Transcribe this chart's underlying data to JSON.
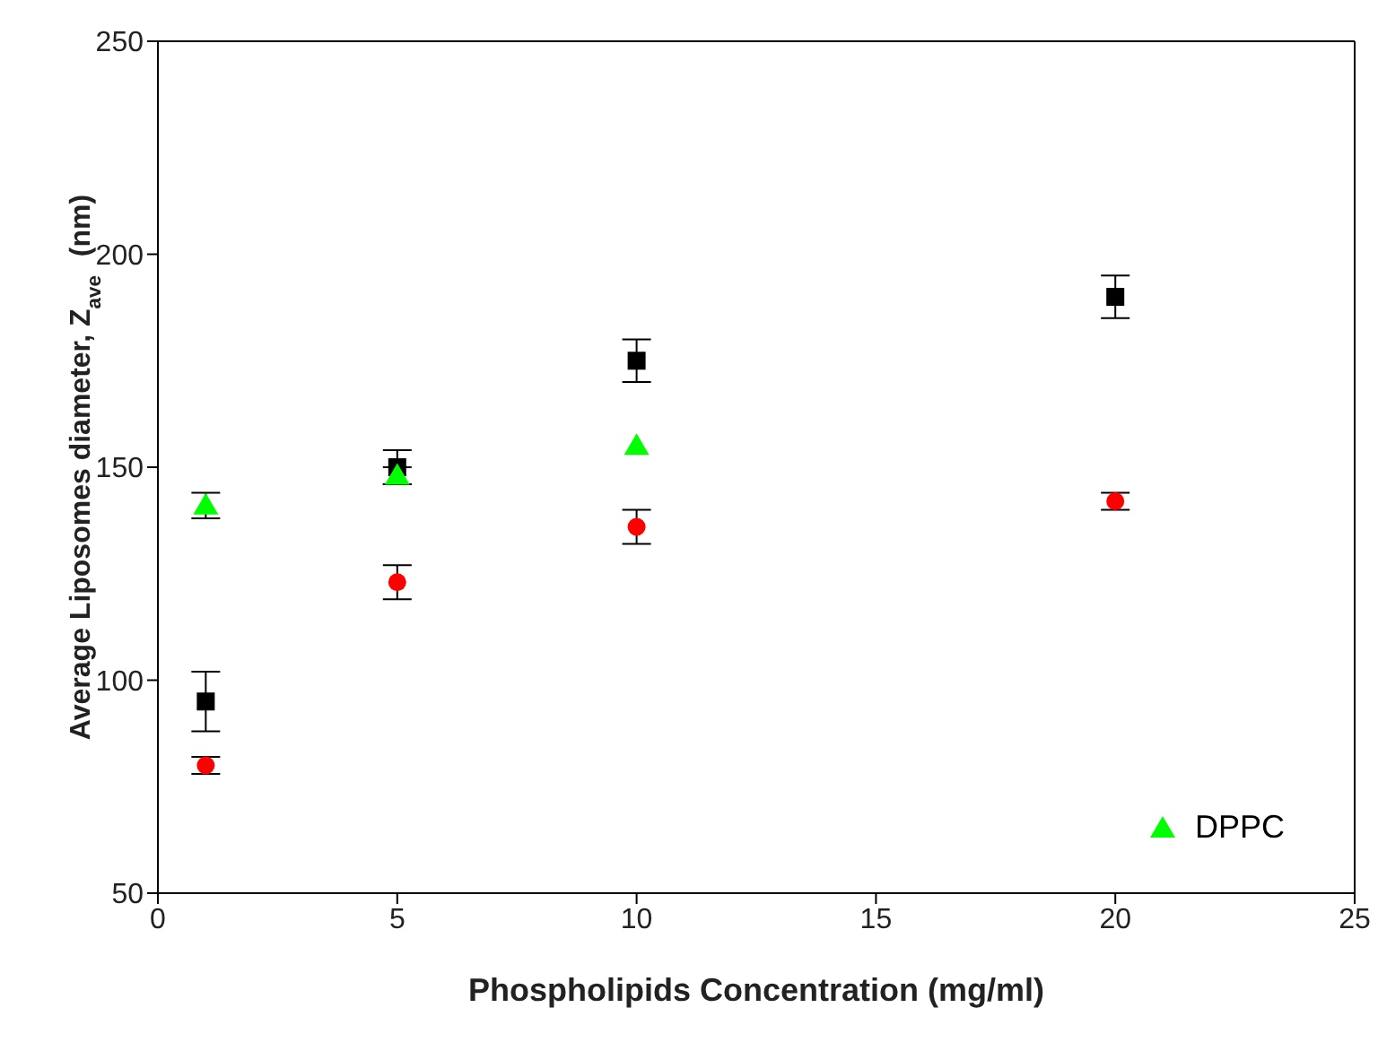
{
  "chart_data": {
    "type": "scatter",
    "xlabel": "Phospholipids Concentration (mg/ml)",
    "ylabel": "Average Liposomes diameter, Z$_{ave}$ (nm)",
    "xlim": [
      0,
      25
    ],
    "xticks": [
      0,
      5,
      10,
      15,
      20,
      25
    ],
    "ylim": [
      50,
      250
    ],
    "yticks": [
      50,
      100,
      150,
      200,
      250
    ],
    "grid": false,
    "legend": "bottom right",
    "series": [
      {
        "color": "#000000",
        "marker": "square",
        "x": [
          1,
          5,
          10,
          20
        ],
        "values": [
          95,
          150,
          175,
          190
        ],
        "errors": [
          7,
          4,
          5,
          5
        ]
      },
      {
        "color": "#ff0000",
        "marker": "circle",
        "x": [
          1,
          5,
          10,
          20
        ],
        "values": [
          80,
          123,
          136,
          142
        ],
        "errors": [
          2,
          4,
          4,
          2
        ]
      },
      {
        "name": "DPPC",
        "color": "#00ff00",
        "marker": "triangle",
        "x": [
          1,
          5,
          10
        ],
        "values": [
          141,
          148,
          155
        ],
        "errors": [
          3,
          2,
          null
        ]
      }
    ]
  }
}
